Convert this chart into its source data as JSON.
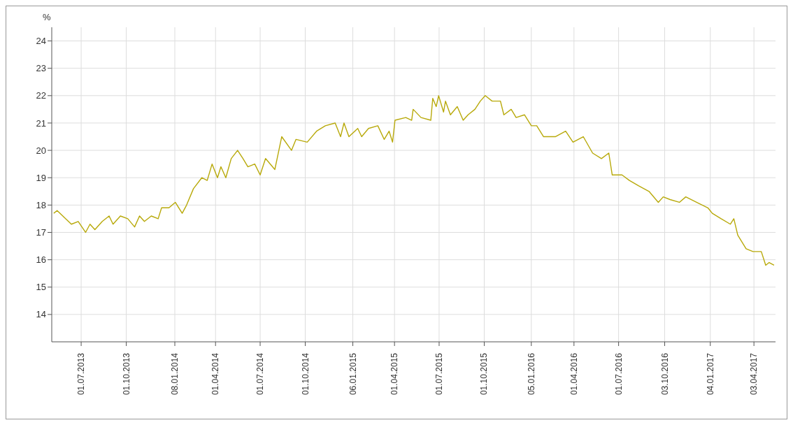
{
  "chart_data": {
    "type": "line",
    "ylabel": "%",
    "x": [
      "2013-05-06",
      "2013-05-13",
      "2013-06-11",
      "2013-06-25",
      "2013-07-10",
      "2013-07-19",
      "2013-07-29",
      "2013-08-13",
      "2013-08-27",
      "2013-09-04",
      "2013-09-19",
      "2013-10-04",
      "2013-10-18",
      "2013-10-28",
      "2013-11-07",
      "2013-11-21",
      "2013-12-05",
      "2013-12-12",
      "2013-12-27",
      "2014-01-09",
      "2014-01-23",
      "2014-02-01",
      "2014-02-15",
      "2014-03-04",
      "2014-03-15",
      "2014-03-25",
      "2014-04-05",
      "2014-04-12",
      "2014-04-22",
      "2014-05-03",
      "2014-05-16",
      "2014-05-27",
      "2014-06-06",
      "2014-06-20",
      "2014-07-01",
      "2014-07-12",
      "2014-07-31",
      "2014-08-14",
      "2014-09-03",
      "2014-09-12",
      "2014-10-05",
      "2014-10-24",
      "2014-11-11",
      "2014-12-01",
      "2014-12-12",
      "2014-12-19",
      "2014-12-29",
      "2015-01-16",
      "2015-01-24",
      "2015-02-07",
      "2015-02-26",
      "2015-03-11",
      "2015-03-21",
      "2015-03-28",
      "2015-04-02",
      "2015-04-24",
      "2015-05-06",
      "2015-05-09",
      "2015-05-25",
      "2015-06-14",
      "2015-06-18",
      "2015-06-25",
      "2015-06-30",
      "2015-07-10",
      "2015-07-14",
      "2015-07-24",
      "2015-08-07",
      "2015-08-19",
      "2015-08-29",
      "2015-09-12",
      "2015-09-23",
      "2015-10-03",
      "2015-10-17",
      "2015-11-03",
      "2015-11-10",
      "2015-11-25",
      "2015-12-05",
      "2015-12-22",
      "2016-01-05",
      "2016-01-16",
      "2016-01-30",
      "2016-02-23",
      "2016-03-15",
      "2016-03-30",
      "2016-04-20",
      "2016-05-09",
      "2016-05-27",
      "2016-06-11",
      "2016-06-18",
      "2016-07-08",
      "2016-07-23",
      "2016-08-11",
      "2016-09-01",
      "2016-09-20",
      "2016-09-30",
      "2016-10-14",
      "2016-11-02",
      "2016-11-15",
      "2016-12-07",
      "2016-12-30",
      "2017-01-08",
      "2017-01-26",
      "2017-02-14",
      "2017-02-21",
      "2017-03-01",
      "2017-03-18",
      "2017-04-01",
      "2017-04-18",
      "2017-04-27",
      "2017-05-04",
      "2017-05-14"
    ],
    "series": [
      {
        "color": "#b8a90a",
        "values": [
          17.7,
          17.8,
          17.3,
          17.4,
          17.0,
          17.3,
          17.1,
          17.4,
          17.6,
          17.3,
          17.6,
          17.5,
          17.2,
          17.6,
          17.4,
          17.6,
          17.5,
          17.9,
          17.9,
          18.1,
          17.7,
          18.0,
          18.6,
          19.0,
          18.9,
          19.5,
          19.0,
          19.4,
          19.0,
          19.7,
          20.0,
          19.7,
          19.4,
          19.5,
          19.1,
          19.7,
          19.3,
          20.5,
          20.0,
          20.4,
          20.3,
          20.7,
          20.9,
          21.0,
          20.5,
          21.0,
          20.5,
          20.8,
          20.5,
          20.8,
          20.9,
          20.4,
          20.7,
          20.3,
          21.1,
          21.2,
          21.1,
          21.5,
          21.2,
          21.1,
          21.9,
          21.6,
          22.0,
          21.4,
          21.8,
          21.3,
          21.6,
          21.1,
          21.3,
          21.5,
          21.8,
          22.0,
          21.8,
          21.8,
          21.3,
          21.5,
          21.2,
          21.3,
          20.9,
          20.9,
          20.5,
          20.5,
          20.7,
          20.3,
          20.5,
          19.9,
          19.7,
          19.9,
          19.1,
          19.1,
          18.9,
          18.7,
          18.5,
          18.1,
          18.3,
          18.2,
          18.1,
          18.3,
          18.1,
          17.9,
          17.7,
          17.5,
          17.3,
          17.5,
          16.9,
          16.4,
          16.3,
          16.3,
          15.8,
          15.9,
          15.8
        ]
      }
    ],
    "xlim": [
      "2013-05-02",
      "2017-05-17"
    ],
    "xticks": [
      {
        "value": "2013-07-01",
        "label": "01.07.2013"
      },
      {
        "value": "2013-10-01",
        "label": "01.10.2013"
      },
      {
        "value": "2014-01-08",
        "label": "08.01.2014"
      },
      {
        "value": "2014-04-01",
        "label": "01.04.2014"
      },
      {
        "value": "2014-07-01",
        "label": "01.07.2014"
      },
      {
        "value": "2014-10-01",
        "label": "01.10.2014"
      },
      {
        "value": "2015-01-06",
        "label": "06.01.2015"
      },
      {
        "value": "2015-04-01",
        "label": "01.04.2015"
      },
      {
        "value": "2015-07-01",
        "label": "01.07.2015"
      },
      {
        "value": "2015-10-01",
        "label": "01.10.2015"
      },
      {
        "value": "2016-01-05",
        "label": "05.01.2016"
      },
      {
        "value": "2016-04-01",
        "label": "01.04.2016"
      },
      {
        "value": "2016-07-01",
        "label": "01.07.2016"
      },
      {
        "value": "2016-10-03",
        "label": "03.10.2016"
      },
      {
        "value": "2017-01-04",
        "label": "04.01.2017"
      },
      {
        "value": "2017-04-03",
        "label": "03.04.2017"
      }
    ],
    "ylim": [
      13,
      24.5
    ],
    "yticks": [
      14,
      15,
      16,
      17,
      18,
      19,
      20,
      21,
      22,
      23,
      24
    ],
    "grid": true,
    "legend": false,
    "marker": "none",
    "line_style": "solid"
  }
}
